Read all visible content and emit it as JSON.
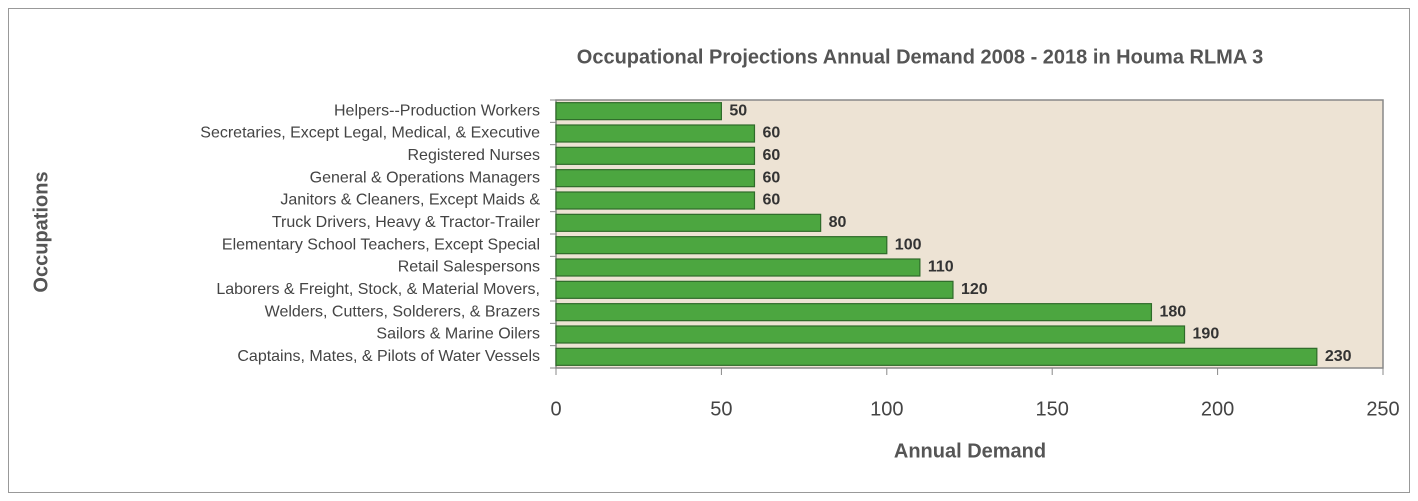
{
  "chart_data": {
    "type": "bar",
    "orientation": "horizontal",
    "title": "Occupational Projections Annual Demand 2008 - 2018 in Houma RLMA 3",
    "x_label": "Annual Demand",
    "y_label": "Occupations",
    "categories": [
      "Helpers--Production Workers",
      "Secretaries, Except Legal, Medical, & Executive",
      "Registered Nurses",
      "General & Operations Managers",
      "Janitors & Cleaners, Except Maids &",
      "Truck Drivers, Heavy & Tractor-Trailer",
      "Elementary School Teachers, Except Special",
      "Retail Salespersons",
      "Laborers & Freight, Stock, & Material Movers,",
      "Welders, Cutters, Solderers, & Brazers",
      "Sailors & Marine Oilers",
      "Captains, Mates, & Pilots of Water Vessels"
    ],
    "values": [
      50,
      60,
      60,
      60,
      60,
      80,
      100,
      110,
      120,
      180,
      190,
      230
    ],
    "color": "#4ca640",
    "xlim": [
      0,
      250
    ],
    "xticks": [
      0,
      50,
      100,
      150,
      200,
      250
    ],
    "plot_background": "#ede3d4"
  }
}
